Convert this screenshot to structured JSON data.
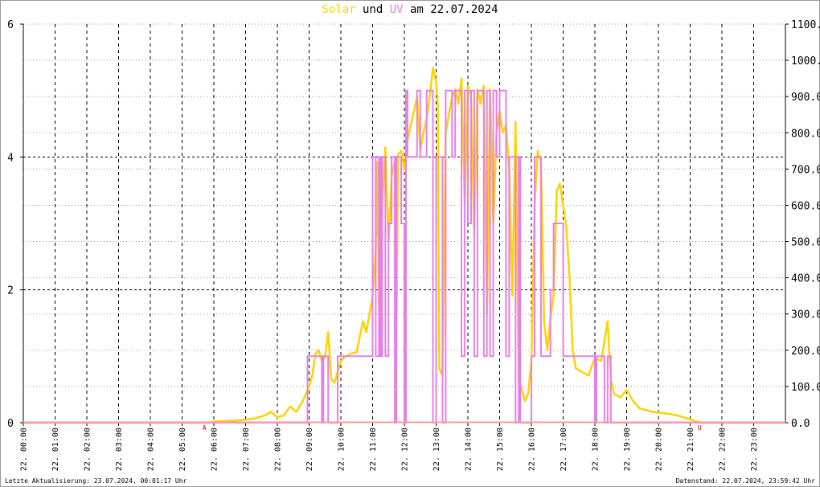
{
  "title": {
    "part1": "Solar",
    "part2": " und ",
    "part3": "UV",
    "part4": " am 22.07.2024"
  },
  "footer": {
    "left": "Letzte Aktualisierung: 23.07.2024, 00:01:17 Uhr",
    "right": "Datenstand: 22.07.2024, 23:59:42 Uhr"
  },
  "colors": {
    "solar": "#ffd200",
    "uv": "#e680e6",
    "overlap": "#ff9a9a",
    "grid": "#000000",
    "marker": "#cc0000"
  },
  "chart_data": {
    "type": "line",
    "y_left": {
      "range": [
        0,
        6
      ],
      "ticks": [
        0,
        2,
        4,
        6
      ],
      "labels": [
        "0",
        "2",
        "4",
        "6"
      ]
    },
    "y_right": {
      "range": [
        0,
        1100
      ],
      "ticks": [
        0,
        100,
        200,
        300,
        400,
        500,
        600,
        700,
        800,
        900,
        1000,
        1100
      ],
      "labels": [
        "0.0",
        "100.0",
        "200.0",
        "300.0",
        "400.0",
        "500.0",
        "600.0",
        "700.0",
        "800.0",
        "900.0",
        "1000.0",
        "1100.0"
      ]
    },
    "x_ticks": [
      "22. 00:00",
      "22. 01:00",
      "22. 02:00",
      "22. 03:00",
      "22. 04:00",
      "22. 05:00",
      "22. 06:00",
      "22. 07:00",
      "22. 08:00",
      "22. 09:00",
      "22. 10:00",
      "22. 11:00",
      "22. 12:00",
      "22. 13:00",
      "22. 14:00",
      "22. 15:00",
      "22. 16:00",
      "22. 17:00",
      "22. 18:00",
      "22. 19:00",
      "22. 20:00",
      "22. 21:00",
      "22. 22:00",
      "22. 23:00"
    ],
    "markers": [
      {
        "label": "A",
        "hour": 5.7
      },
      {
        "label": "U",
        "hour": 21.3
      }
    ],
    "series": [
      {
        "name": "Solar",
        "axis": "right",
        "points": [
          [
            0,
            0
          ],
          [
            5.9,
            0
          ],
          [
            6.0,
            3
          ],
          [
            6.5,
            5
          ],
          [
            7.0,
            8
          ],
          [
            7.3,
            12
          ],
          [
            7.6,
            20
          ],
          [
            7.8,
            30
          ],
          [
            8.0,
            15
          ],
          [
            8.2,
            20
          ],
          [
            8.4,
            45
          ],
          [
            8.6,
            30
          ],
          [
            8.8,
            60
          ],
          [
            9.0,
            100
          ],
          [
            9.1,
            130
          ],
          [
            9.2,
            190
          ],
          [
            9.3,
            200
          ],
          [
            9.4,
            170
          ],
          [
            9.5,
            180
          ],
          [
            9.6,
            250
          ],
          [
            9.7,
            120
          ],
          [
            9.8,
            110
          ],
          [
            9.9,
            140
          ],
          [
            10.0,
            170
          ],
          [
            10.1,
            180
          ],
          [
            10.3,
            190
          ],
          [
            10.5,
            195
          ],
          [
            10.6,
            240
          ],
          [
            10.7,
            280
          ],
          [
            10.8,
            250
          ],
          [
            10.9,
            300
          ],
          [
            11.0,
            350
          ],
          [
            11.1,
            480
          ],
          [
            11.15,
            720
          ],
          [
            11.2,
            320
          ],
          [
            11.3,
            600
          ],
          [
            11.4,
            760
          ],
          [
            11.5,
            500
          ],
          [
            11.6,
            680
          ],
          [
            11.7,
            720
          ],
          [
            11.75,
            200
          ],
          [
            11.8,
            740
          ],
          [
            11.9,
            750
          ],
          [
            12.0,
            700
          ],
          [
            12.1,
            780
          ],
          [
            12.2,
            820
          ],
          [
            12.3,
            860
          ],
          [
            12.4,
            900
          ],
          [
            12.5,
            750
          ],
          [
            12.6,
            800
          ],
          [
            12.7,
            840
          ],
          [
            12.8,
            900
          ],
          [
            12.9,
            980
          ],
          [
            13.0,
            940
          ],
          [
            13.05,
            880
          ],
          [
            13.1,
            150
          ],
          [
            13.2,
            130
          ],
          [
            13.3,
            800
          ],
          [
            13.4,
            850
          ],
          [
            13.5,
            900
          ],
          [
            13.6,
            920
          ],
          [
            13.7,
            880
          ],
          [
            13.8,
            950
          ],
          [
            13.9,
            600
          ],
          [
            14.0,
            930
          ],
          [
            14.1,
            900
          ],
          [
            14.2,
            520
          ],
          [
            14.3,
            920
          ],
          [
            14.4,
            880
          ],
          [
            14.5,
            930
          ],
          [
            14.6,
            300
          ],
          [
            14.7,
            920
          ],
          [
            14.8,
            550
          ],
          [
            14.9,
            800
          ],
          [
            15.0,
            860
          ],
          [
            15.1,
            800
          ],
          [
            15.2,
            820
          ],
          [
            15.3,
            700
          ],
          [
            15.4,
            350
          ],
          [
            15.5,
            830
          ],
          [
            15.6,
            120
          ],
          [
            15.7,
            90
          ],
          [
            15.8,
            60
          ],
          [
            15.9,
            80
          ],
          [
            16.0,
            170
          ],
          [
            16.1,
            600
          ],
          [
            16.2,
            750
          ],
          [
            16.3,
            720
          ],
          [
            16.4,
            280
          ],
          [
            16.5,
            200
          ],
          [
            16.6,
            290
          ],
          [
            16.7,
            350
          ],
          [
            16.8,
            640
          ],
          [
            16.9,
            660
          ],
          [
            17.0,
            600
          ],
          [
            17.1,
            540
          ],
          [
            17.2,
            400
          ],
          [
            17.3,
            200
          ],
          [
            17.4,
            150
          ],
          [
            17.6,
            140
          ],
          [
            17.8,
            130
          ],
          [
            18.0,
            180
          ],
          [
            18.2,
            170
          ],
          [
            18.4,
            280
          ],
          [
            18.5,
            120
          ],
          [
            18.6,
            80
          ],
          [
            18.8,
            70
          ],
          [
            19.0,
            90
          ],
          [
            19.2,
            60
          ],
          [
            19.4,
            40
          ],
          [
            19.6,
            35
          ],
          [
            19.8,
            30
          ],
          [
            20.0,
            28
          ],
          [
            20.3,
            25
          ],
          [
            20.6,
            20
          ],
          [
            20.9,
            12
          ],
          [
            21.2,
            3
          ],
          [
            21.3,
            0
          ],
          [
            24,
            0
          ]
        ]
      },
      {
        "name": "UV",
        "axis": "left",
        "points": [
          [
            0,
            0
          ],
          [
            8.95,
            0
          ],
          [
            8.95,
            1
          ],
          [
            9.4,
            1
          ],
          [
            9.4,
            0
          ],
          [
            9.45,
            0
          ],
          [
            9.45,
            1
          ],
          [
            9.6,
            1
          ],
          [
            9.6,
            0
          ],
          [
            9.9,
            0
          ],
          [
            9.9,
            1
          ],
          [
            11.0,
            1
          ],
          [
            11.0,
            4
          ],
          [
            11.1,
            4
          ],
          [
            11.1,
            1
          ],
          [
            11.2,
            1
          ],
          [
            11.2,
            4
          ],
          [
            11.25,
            4
          ],
          [
            11.25,
            1
          ],
          [
            11.3,
            1
          ],
          [
            11.3,
            4
          ],
          [
            11.4,
            4
          ],
          [
            11.4,
            1
          ],
          [
            11.5,
            1
          ],
          [
            11.5,
            3
          ],
          [
            11.6,
            3
          ],
          [
            11.6,
            4
          ],
          [
            11.7,
            4
          ],
          [
            11.7,
            0
          ],
          [
            11.75,
            0
          ],
          [
            11.75,
            4
          ],
          [
            11.9,
            4
          ],
          [
            11.9,
            3
          ],
          [
            12.0,
            3
          ],
          [
            12.0,
            0
          ],
          [
            12.05,
            0
          ],
          [
            12.05,
            5
          ],
          [
            12.1,
            5
          ],
          [
            12.1,
            4
          ],
          [
            12.4,
            4
          ],
          [
            12.4,
            5
          ],
          [
            12.5,
            5
          ],
          [
            12.5,
            4
          ],
          [
            12.7,
            4
          ],
          [
            12.7,
            5
          ],
          [
            12.9,
            5
          ],
          [
            12.9,
            0
          ],
          [
            13.0,
            0
          ],
          [
            13.0,
            4
          ],
          [
            13.2,
            4
          ],
          [
            13.2,
            0
          ],
          [
            13.3,
            0
          ],
          [
            13.3,
            5
          ],
          [
            13.5,
            5
          ],
          [
            13.5,
            4
          ],
          [
            13.6,
            4
          ],
          [
            13.6,
            5
          ],
          [
            13.8,
            5
          ],
          [
            13.8,
            1
          ],
          [
            13.9,
            1
          ],
          [
            13.9,
            5
          ],
          [
            14.0,
            5
          ],
          [
            14.0,
            3
          ],
          [
            14.1,
            3
          ],
          [
            14.1,
            5
          ],
          [
            14.2,
            5
          ],
          [
            14.2,
            1
          ],
          [
            14.3,
            1
          ],
          [
            14.3,
            5
          ],
          [
            14.5,
            5
          ],
          [
            14.5,
            1
          ],
          [
            14.6,
            1
          ],
          [
            14.6,
            5
          ],
          [
            14.7,
            5
          ],
          [
            14.7,
            1
          ],
          [
            14.8,
            1
          ],
          [
            14.8,
            5
          ],
          [
            14.9,
            5
          ],
          [
            14.9,
            4
          ],
          [
            15.0,
            4
          ],
          [
            15.0,
            5
          ],
          [
            15.2,
            5
          ],
          [
            15.2,
            1
          ],
          [
            15.3,
            1
          ],
          [
            15.3,
            4
          ],
          [
            15.5,
            4
          ],
          [
            15.5,
            0
          ],
          [
            15.6,
            0
          ],
          [
            15.6,
            4
          ],
          [
            15.65,
            4
          ],
          [
            15.65,
            0
          ],
          [
            16.0,
            0
          ],
          [
            16.0,
            1
          ],
          [
            16.1,
            1
          ],
          [
            16.1,
            4
          ],
          [
            16.3,
            4
          ],
          [
            16.3,
            1
          ],
          [
            16.6,
            1
          ],
          [
            16.6,
            2
          ],
          [
            16.7,
            2
          ],
          [
            16.7,
            3
          ],
          [
            17.0,
            3
          ],
          [
            17.0,
            1
          ],
          [
            17.1,
            1
          ],
          [
            17.1,
            1
          ],
          [
            18.0,
            1
          ],
          [
            18.0,
            0
          ],
          [
            18.05,
            0
          ],
          [
            18.05,
            1
          ],
          [
            18.3,
            1
          ],
          [
            18.3,
            0
          ],
          [
            18.4,
            0
          ],
          [
            18.4,
            1
          ],
          [
            18.5,
            1
          ],
          [
            18.5,
            0
          ],
          [
            24,
            0
          ]
        ]
      }
    ]
  }
}
